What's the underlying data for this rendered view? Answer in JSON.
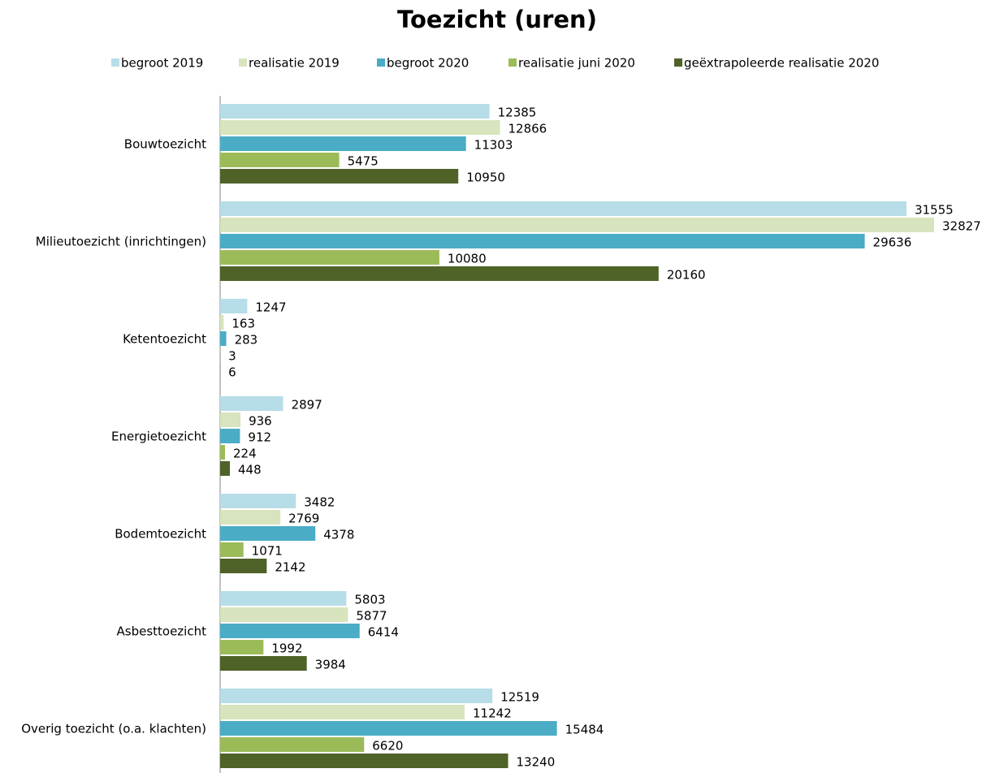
{
  "chart_data": {
    "type": "hbar",
    "title": "Toezicht (uren)",
    "categories": [
      "Bouwtoezicht",
      "Milieutoezicht (inrichtingen)",
      "Ketentoezicht",
      "Energietoezicht",
      "Bodemtoezicht",
      "Asbesttoezicht",
      "Overig toezicht (o.a. klachten)"
    ],
    "series": [
      {
        "name": "begroot 2019",
        "color": "#b7dde8",
        "values": [
          12385,
          31555,
          1247,
          2897,
          3482,
          5803,
          12519
        ]
      },
      {
        "name": "realisatie 2019",
        "color": "#d7e4bd",
        "values": [
          12866,
          32827,
          163,
          936,
          2769,
          5877,
          11242
        ]
      },
      {
        "name": "begroot 2020",
        "color": "#4bacc6",
        "values": [
          11303,
          29636,
          283,
          912,
          4378,
          6414,
          15484
        ]
      },
      {
        "name": "realisatie juni 2020",
        "color": "#9bbb59",
        "values": [
          5475,
          10080,
          3,
          224,
          1071,
          1992,
          6620
        ]
      },
      {
        "name": "geëxtrapoleerde realisatie 2020",
        "color": "#4f6228",
        "values": [
          10950,
          20160,
          6,
          448,
          2142,
          3984,
          13240
        ]
      }
    ],
    "legend": "top"
  }
}
